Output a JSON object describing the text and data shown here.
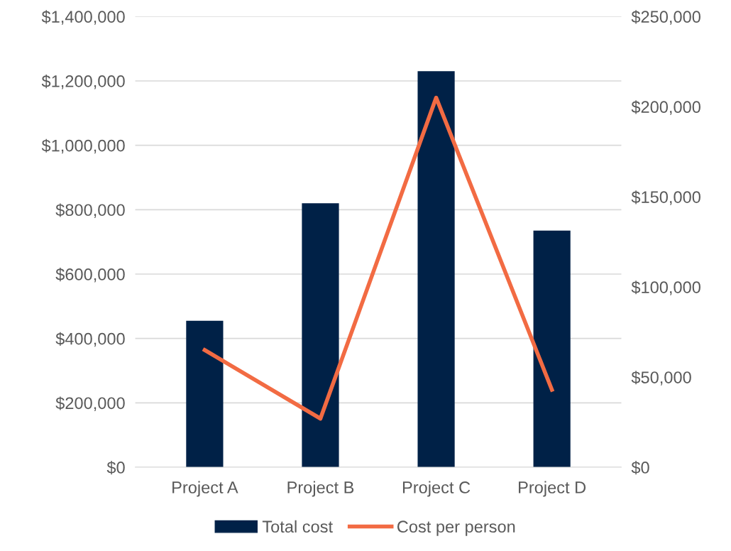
{
  "chart_data": {
    "type": "bar",
    "categories": [
      "Project A",
      "Project B",
      "Project C",
      "Project D"
    ],
    "series": [
      {
        "name": "Total cost",
        "color": "#002147",
        "values": [
          455000,
          820000,
          1230000,
          735000
        ]
      },
      {
        "name": "Cost per person",
        "type": "line",
        "axis": "y2",
        "color": "#f26b43",
        "values": [
          65000,
          27000,
          205000,
          43000
        ]
      }
    ],
    "ylim": [
      0,
      1400000
    ],
    "yticks": [
      {
        "value": 0,
        "label": "$0"
      },
      {
        "value": 200000,
        "label": "$200,000"
      },
      {
        "value": 400000,
        "label": "$400,000"
      },
      {
        "value": 600000,
        "label": "$600,000"
      },
      {
        "value": 800000,
        "label": "$800,000"
      },
      {
        "value": 1000000,
        "label": "$1,000,000"
      },
      {
        "value": 1200000,
        "label": "$1,200,000"
      },
      {
        "value": 1400000,
        "label": "$1,400,000"
      }
    ],
    "y2lim": [
      0,
      250000
    ],
    "y2ticks": [
      {
        "value": 0,
        "label": "$0"
      },
      {
        "value": 50000,
        "label": "$50,000"
      },
      {
        "value": 100000,
        "label": "$100,000"
      },
      {
        "value": 150000,
        "label": "$150,000"
      },
      {
        "value": 200000,
        "label": "$200,000"
      },
      {
        "value": 250000,
        "label": "$250,000"
      }
    ],
    "grid": "y",
    "legend": "bottom",
    "marker": "none",
    "line_style": "solid"
  }
}
